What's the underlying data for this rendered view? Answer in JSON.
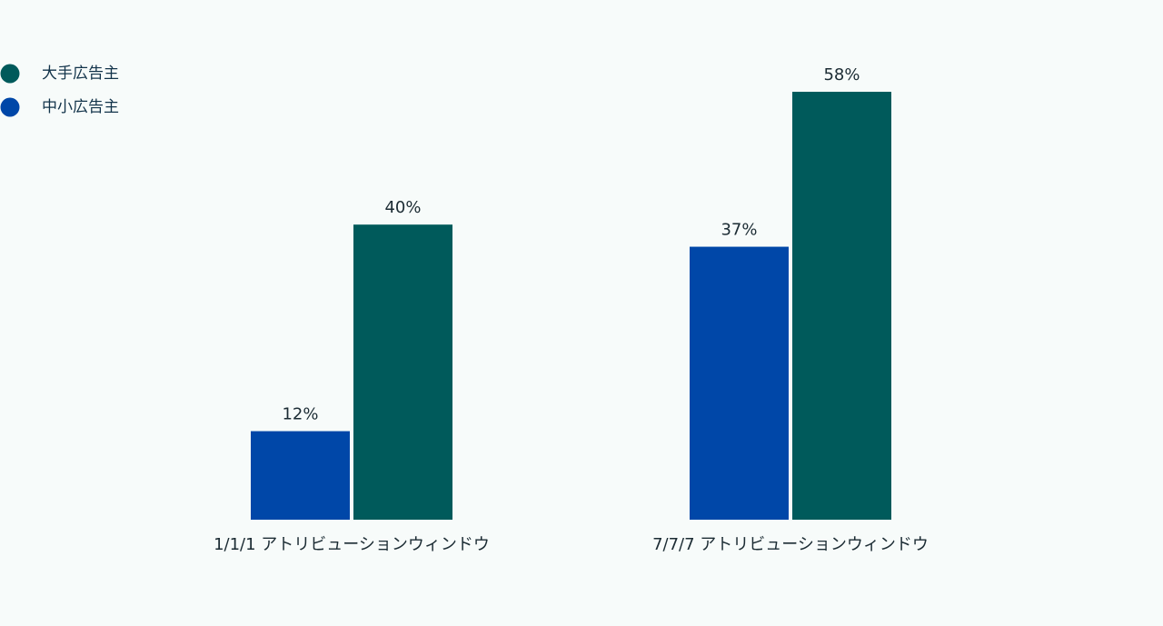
{
  "chart_data": {
    "type": "bar",
    "categories": [
      "1/1/1 アトリビューションウィンドウ",
      "7/7/7 アトリビューションウィンドウ"
    ],
    "series": [
      {
        "name": "大手広告主",
        "color": "#005a5b",
        "values": [
          40,
          58
        ],
        "value_labels": [
          "40%",
          "58%"
        ]
      },
      {
        "name": "中小広告主",
        "color": "#0047a8",
        "values": [
          12,
          37
        ],
        "value_labels": [
          "12%",
          "37%"
        ]
      }
    ]
  }
}
